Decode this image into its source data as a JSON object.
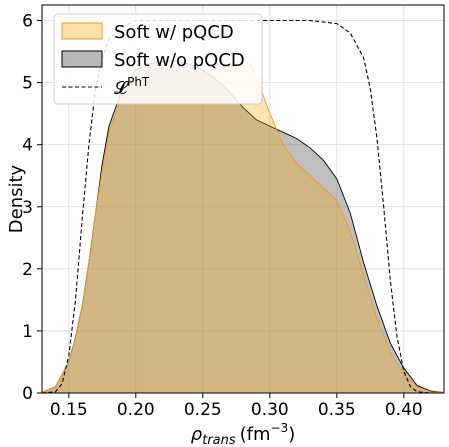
{
  "chart_data": {
    "type": "area",
    "xlabel": "ρ",
    "xlabel_sub": "trans",
    "xlabel_unit": "(fm",
    "xlabel_unit_sup": "−3",
    "xlabel_unit_end": ")",
    "ylabel": "Density",
    "xlim": [
      0.13,
      0.43
    ],
    "ylim": [
      0,
      6.25
    ],
    "xticks": [
      {
        "v": 0.15,
        "label": "0.15"
      },
      {
        "v": 0.2,
        "label": "0.20"
      },
      {
        "v": 0.25,
        "label": "0.25"
      },
      {
        "v": 0.3,
        "label": "0.30"
      },
      {
        "v": 0.35,
        "label": "0.35"
      },
      {
        "v": 0.4,
        "label": "0.40"
      }
    ],
    "yticks": [
      {
        "v": 0,
        "label": "0"
      },
      {
        "v": 1,
        "label": "1"
      },
      {
        "v": 2,
        "label": "2"
      },
      {
        "v": 3,
        "label": "3"
      },
      {
        "v": 4,
        "label": "4"
      },
      {
        "v": 5,
        "label": "5"
      },
      {
        "v": 6,
        "label": "6"
      }
    ],
    "grid": true,
    "legend_placement": "top-left",
    "series": [
      {
        "name": "Soft w/o pQCD",
        "style": "filled",
        "fill": "#7f7f7f",
        "stroke": "#000000",
        "fill_opacity": 0.5,
        "x": [
          0.13,
          0.14,
          0.15,
          0.155,
          0.16,
          0.165,
          0.17,
          0.175,
          0.18,
          0.19,
          0.2,
          0.21,
          0.22,
          0.23,
          0.24,
          0.25,
          0.26,
          0.27,
          0.28,
          0.29,
          0.3,
          0.31,
          0.32,
          0.33,
          0.34,
          0.35,
          0.36,
          0.37,
          0.38,
          0.39,
          0.4,
          0.41,
          0.42,
          0.43
        ],
        "y": [
          0.01,
          0.1,
          0.5,
          0.9,
          1.4,
          2.1,
          2.9,
          3.7,
          4.3,
          4.9,
          5.2,
          5.3,
          5.35,
          5.35,
          5.3,
          5.2,
          5.05,
          4.85,
          4.6,
          4.4,
          4.3,
          4.2,
          4.1,
          3.95,
          3.75,
          3.45,
          2.9,
          2.1,
          1.4,
          0.8,
          0.4,
          0.12,
          0.03,
          0.01
        ]
      },
      {
        "name": "Soft w/ pQCD",
        "style": "filled",
        "fill": "#ffa500",
        "stroke": "#e89a2e",
        "fill_opacity": 0.3,
        "x": [
          0.13,
          0.14,
          0.15,
          0.155,
          0.16,
          0.165,
          0.17,
          0.175,
          0.18,
          0.19,
          0.2,
          0.21,
          0.22,
          0.23,
          0.24,
          0.25,
          0.26,
          0.27,
          0.28,
          0.285,
          0.29,
          0.3,
          0.31,
          0.32,
          0.33,
          0.34,
          0.35,
          0.36,
          0.37,
          0.38,
          0.39,
          0.4,
          0.41,
          0.42,
          0.43
        ],
        "y": [
          0.01,
          0.1,
          0.5,
          0.9,
          1.4,
          2.1,
          2.9,
          3.6,
          4.2,
          4.8,
          5.1,
          5.2,
          5.25,
          5.25,
          5.2,
          5.15,
          5.2,
          5.3,
          5.35,
          5.3,
          5.1,
          4.5,
          4.0,
          3.7,
          3.5,
          3.3,
          3.1,
          2.6,
          1.9,
          1.2,
          0.65,
          0.3,
          0.1,
          0.02,
          0.01
        ]
      },
      {
        "name": "𝓛",
        "name_sup": "PhT",
        "style": "dashed",
        "stroke": "#000000",
        "x": [
          0.13,
          0.14,
          0.145,
          0.15,
          0.155,
          0.16,
          0.165,
          0.17,
          0.175,
          0.18,
          0.19,
          0.2,
          0.25,
          0.3,
          0.33,
          0.35,
          0.36,
          0.37,
          0.375,
          0.38,
          0.385,
          0.39,
          0.395,
          0.4,
          0.405,
          0.41,
          0.42,
          0.43
        ],
        "y": [
          0.0,
          0.02,
          0.15,
          0.6,
          1.5,
          2.8,
          4.0,
          4.9,
          5.4,
          5.7,
          5.9,
          6.0,
          6.0,
          6.0,
          6.0,
          5.95,
          5.8,
          5.4,
          4.9,
          4.1,
          3.0,
          1.8,
          0.9,
          0.35,
          0.1,
          0.02,
          0.0,
          0.0
        ]
      }
    ]
  }
}
